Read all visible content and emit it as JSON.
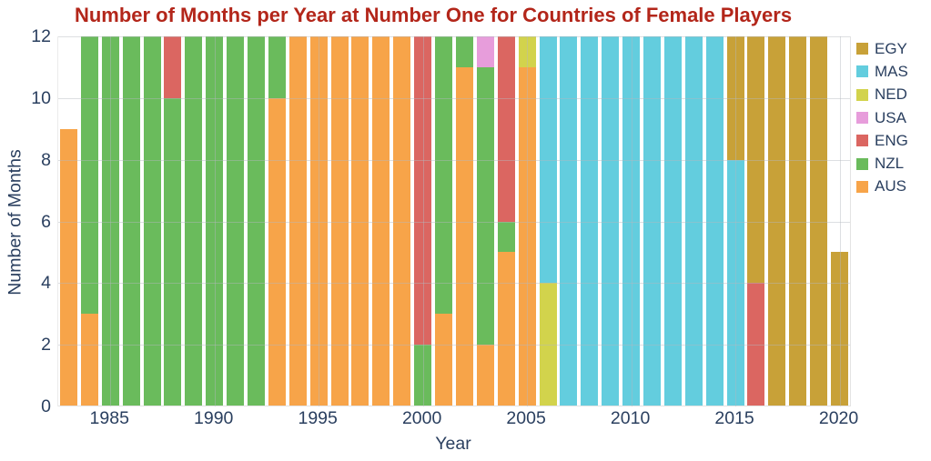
{
  "title": "Number of Months per Year at Number One for Countries of Female Players",
  "colors": {
    "title": "#b3261a",
    "axis_text": "#2a3f5f",
    "gridline": "#e3e3e3"
  },
  "legend": {
    "order_top_to_bottom": [
      "EGY",
      "MAS",
      "NED",
      "USA",
      "ENG",
      "NZL",
      "AUS"
    ]
  },
  "chart_data": {
    "type": "bar",
    "stacked": true,
    "title": "Number of Months per Year at Number One for Countries of Female Players",
    "xlabel": "Year",
    "ylabel": "Number of Months",
    "ylim": [
      0,
      12
    ],
    "ytick_values": [
      0,
      2,
      4,
      6,
      8,
      10,
      12
    ],
    "xtick_values": [
      1985,
      1990,
      1995,
      2000,
      2005,
      2010,
      2015,
      2020
    ],
    "grid": true,
    "legend_position": "right",
    "categories": [
      1983,
      1984,
      1985,
      1986,
      1987,
      1988,
      1989,
      1990,
      1991,
      1992,
      1993,
      1994,
      1995,
      1996,
      1997,
      1998,
      1999,
      2000,
      2001,
      2002,
      2003,
      2004,
      2005,
      2006,
      2007,
      2008,
      2009,
      2010,
      2011,
      2012,
      2013,
      2014,
      2015,
      2016,
      2017,
      2018,
      2019,
      2020
    ],
    "series_stack_order_note": "bottom-to-top stacking order",
    "series": [
      {
        "name": "AUS",
        "color": "#f7a449",
        "values": [
          9,
          3,
          0,
          0,
          0,
          0,
          0,
          0,
          0,
          0,
          10,
          12,
          12,
          12,
          12,
          12,
          12,
          0,
          3,
          11,
          2,
          5,
          11,
          0,
          0,
          0,
          0,
          0,
          0,
          0,
          0,
          0,
          0,
          0,
          0,
          0,
          0,
          0
        ]
      },
      {
        "name": "NZL",
        "color": "#6abb5c",
        "values": [
          0,
          9,
          12,
          12,
          12,
          10,
          12,
          12,
          12,
          12,
          2,
          0,
          0,
          0,
          0,
          0,
          0,
          2,
          9,
          1,
          9,
          1,
          0,
          0,
          0,
          0,
          0,
          0,
          0,
          0,
          0,
          0,
          0,
          0,
          0,
          0,
          0,
          0
        ]
      },
      {
        "name": "ENG",
        "color": "#db6661",
        "values": [
          0,
          0,
          0,
          0,
          0,
          2,
          0,
          0,
          0,
          0,
          0,
          0,
          0,
          0,
          0,
          0,
          0,
          10,
          0,
          0,
          0,
          6,
          0,
          0,
          0,
          0,
          0,
          0,
          0,
          0,
          0,
          0,
          0,
          4,
          0,
          0,
          0,
          0
        ]
      },
      {
        "name": "USA",
        "color": "#e79ddb",
        "values": [
          0,
          0,
          0,
          0,
          0,
          0,
          0,
          0,
          0,
          0,
          0,
          0,
          0,
          0,
          0,
          0,
          0,
          0,
          0,
          0,
          1,
          0,
          0,
          0,
          0,
          0,
          0,
          0,
          0,
          0,
          0,
          0,
          0,
          0,
          0,
          0,
          0,
          0
        ]
      },
      {
        "name": "NED",
        "color": "#d2d34c",
        "values": [
          0,
          0,
          0,
          0,
          0,
          0,
          0,
          0,
          0,
          0,
          0,
          0,
          0,
          0,
          0,
          0,
          0,
          0,
          0,
          0,
          0,
          0,
          1,
          4,
          0,
          0,
          0,
          0,
          0,
          0,
          0,
          0,
          0,
          0,
          0,
          0,
          0,
          0
        ]
      },
      {
        "name": "MAS",
        "color": "#63cdde",
        "values": [
          0,
          0,
          0,
          0,
          0,
          0,
          0,
          0,
          0,
          0,
          0,
          0,
          0,
          0,
          0,
          0,
          0,
          0,
          0,
          0,
          0,
          0,
          0,
          8,
          12,
          12,
          12,
          12,
          12,
          12,
          12,
          12,
          8,
          0,
          0,
          0,
          0,
          0
        ]
      },
      {
        "name": "EGY",
        "color": "#c8a138",
        "values": [
          0,
          0,
          0,
          0,
          0,
          0,
          0,
          0,
          0,
          0,
          0,
          0,
          0,
          0,
          0,
          0,
          0,
          0,
          0,
          0,
          0,
          0,
          0,
          0,
          0,
          0,
          0,
          0,
          0,
          0,
          0,
          0,
          4,
          8,
          12,
          12,
          12,
          5
        ]
      }
    ]
  }
}
